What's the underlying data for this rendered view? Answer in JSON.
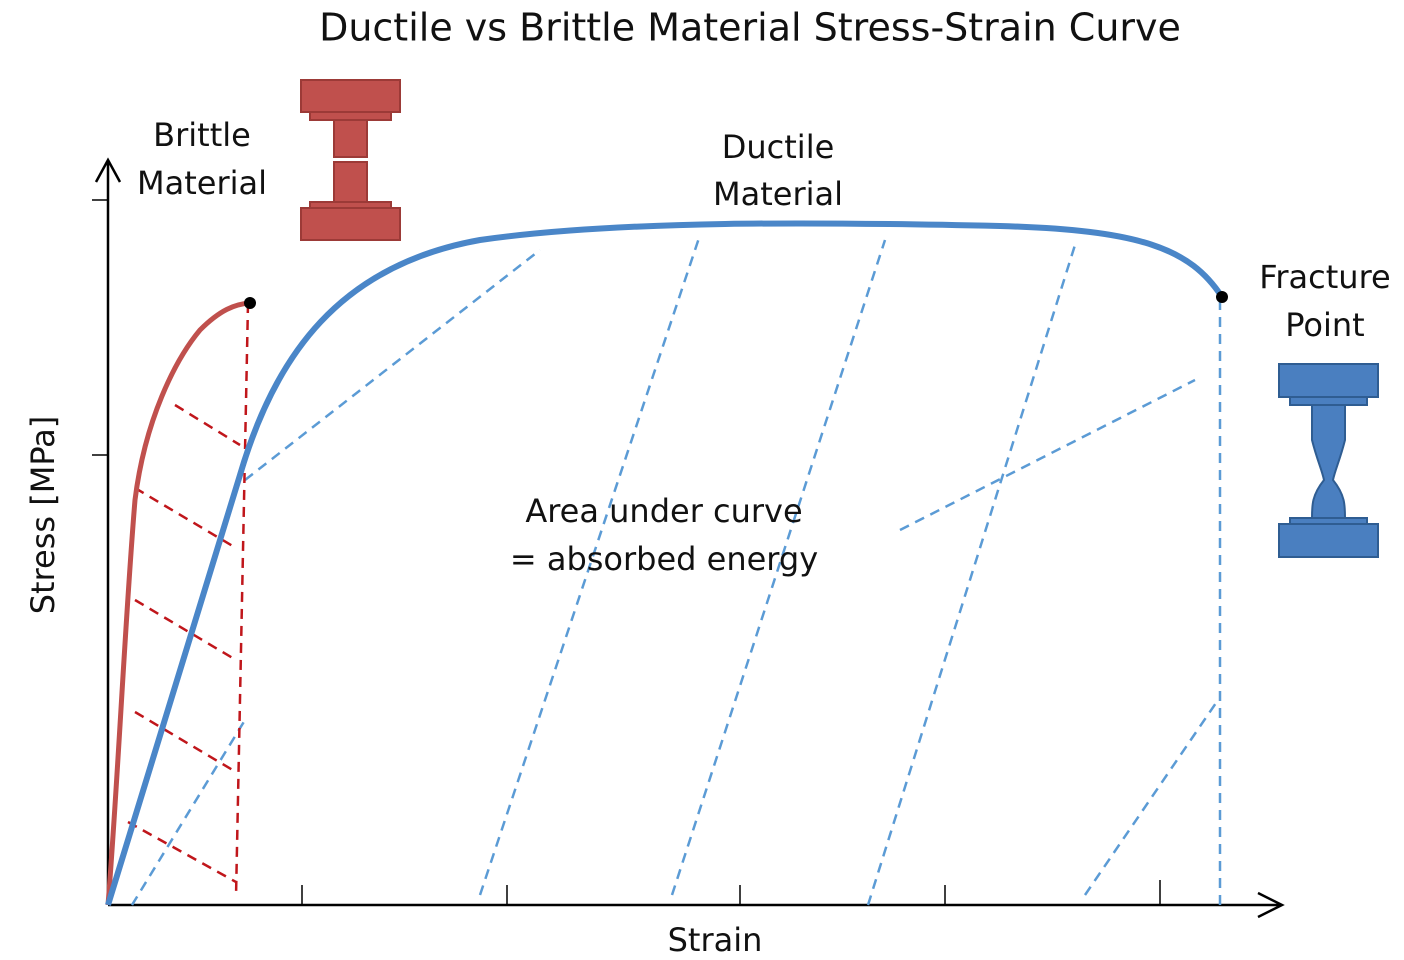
{
  "title": "Ductile vs Brittle Material Stress-Strain Curve",
  "labels": {
    "brittle": [
      "Brittle",
      "Material"
    ],
    "ductile": [
      "Ductile",
      "Material"
    ],
    "fracture": [
      "Fracture",
      "Point"
    ],
    "area": [
      "Area under curve",
      "= absorbed energy"
    ]
  },
  "axes": {
    "y_label": "Stress [MPa]",
    "x_label": "Strain"
  }
}
